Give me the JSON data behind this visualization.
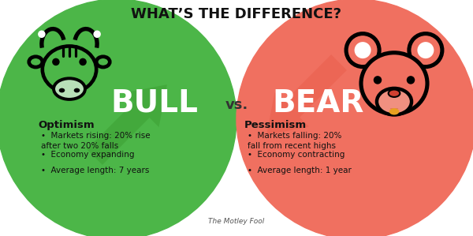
{
  "title": "WHAT’S THE DIFFERENCE?",
  "background_color": "#ffffff",
  "green_bg": "#4cb648",
  "green_arrow": "#3da033",
  "red_bg": "#f07060",
  "red_arrow": "#e85a48",
  "bull_label": "BULL",
  "vs_label": "vs.",
  "bear_label": "BEAR",
  "bull_sublabel": "Optimism",
  "bear_sublabel": "Pessimism",
  "bull_points": [
    "Markets rising: 20% rise\nafter two 20% falls",
    "Economy expanding",
    "Average length: 7 years"
  ],
  "bear_points": [
    "Markets falling: 20%\nfall from recent highs",
    "Economy contracting",
    "Average length: 1 year"
  ],
  "motley_fool_text": "The Motley Fool"
}
